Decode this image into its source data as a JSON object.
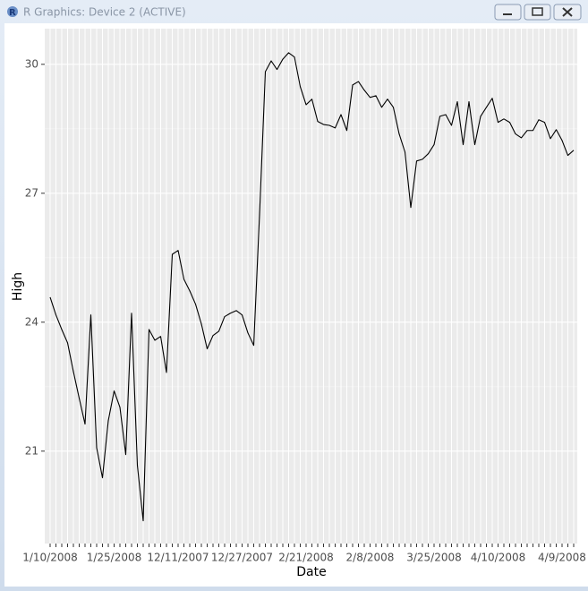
{
  "window": {
    "title": "R Graphics: Device 2 (ACTIVE)"
  },
  "chart_data": {
    "type": "line",
    "x_label": "Date",
    "y_label": "High",
    "categories": [
      "1/10/2008",
      null,
      null,
      null,
      null,
      null,
      null,
      null,
      null,
      null,
      null,
      "1/25/2008",
      null,
      null,
      null,
      null,
      null,
      null,
      null,
      null,
      null,
      null,
      "12/11/2007",
      null,
      null,
      null,
      null,
      null,
      null,
      null,
      null,
      null,
      null,
      "12/27/2007",
      null,
      null,
      null,
      null,
      null,
      null,
      null,
      null,
      null,
      null,
      "2/21/2008",
      null,
      null,
      null,
      null,
      null,
      null,
      null,
      null,
      null,
      null,
      "2/8/2008",
      null,
      null,
      null,
      null,
      null,
      null,
      null,
      null,
      null,
      null,
      "3/25/2008",
      null,
      null,
      null,
      null,
      null,
      null,
      null,
      null,
      null,
      null,
      "4/10/2008",
      null,
      null,
      null,
      null,
      null,
      null,
      null,
      null,
      null,
      null,
      "4/9/2008",
      null,
      null
    ],
    "values": [
      24.58,
      24.17,
      23.83,
      23.52,
      22.85,
      22.23,
      21.63,
      24.17,
      21.08,
      20.38,
      21.71,
      22.4,
      22.02,
      20.92,
      24.21,
      20.67,
      19.38,
      23.83,
      23.58,
      23.67,
      22.83,
      25.58,
      25.67,
      25.0,
      24.73,
      24.42,
      23.96,
      23.38,
      23.69,
      23.79,
      24.13,
      24.21,
      24.27,
      24.17,
      23.75,
      23.46,
      26.5,
      29.83,
      30.08,
      29.88,
      30.12,
      30.27,
      30.17,
      29.48,
      29.06,
      29.19,
      28.67,
      28.6,
      28.58,
      28.52,
      28.83,
      28.46,
      29.52,
      29.6,
      29.4,
      29.23,
      29.27,
      29.0,
      29.19,
      29.0,
      28.38,
      27.96,
      26.67,
      27.75,
      27.79,
      27.92,
      28.13,
      28.79,
      28.83,
      28.58,
      29.13,
      28.13,
      29.13,
      28.13,
      28.79,
      29.0,
      29.21,
      28.65,
      28.73,
      28.65,
      28.38,
      28.29,
      28.46,
      28.46,
      28.71,
      28.65,
      28.27,
      28.48,
      28.23,
      27.88,
      28.0
    ],
    "color": "#000000",
    "ylim": [
      18.85,
      30.83
    ],
    "yticks": [
      21,
      24,
      27,
      30
    ],
    "grid": true
  }
}
